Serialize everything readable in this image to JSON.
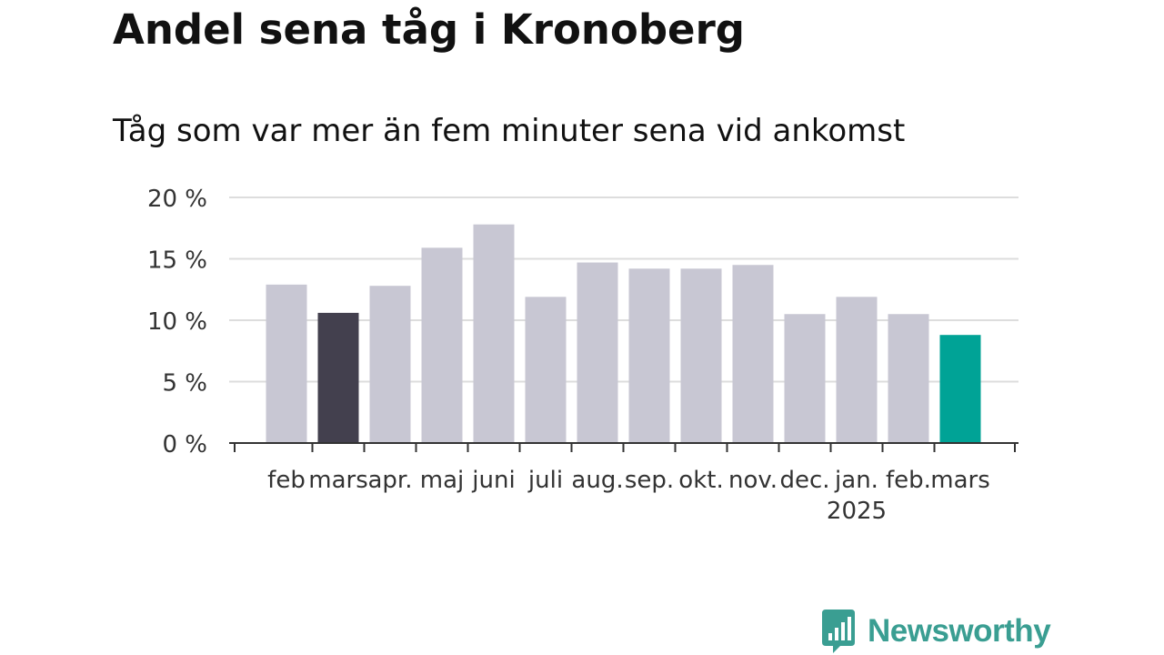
{
  "title": "Andel sena tåg i Kronoberg",
  "subtitle": "Tåg som var mer än fem minuter sena vid ankomst",
  "brand": {
    "name": "Newsworthy",
    "icon": "newsworthy-logo-icon",
    "color": "#3a9e92"
  },
  "colors": {
    "default_bar": "#c8c7d3",
    "highlight_previous_year": "#43404e",
    "highlight_current": "#00a396",
    "grid": "#dddddd",
    "axis": "#333333",
    "text": "#333333"
  },
  "chart_data": {
    "type": "bar",
    "categories": [
      "feb",
      "mars",
      "apr.",
      "maj",
      "juni",
      "juli",
      "aug.",
      "sep.",
      "okt.",
      "nov.",
      "dec.",
      "jan.",
      "feb.",
      "mars"
    ],
    "year_labels": {
      "11": "2025"
    },
    "values": [
      12.9,
      10.6,
      12.8,
      15.9,
      17.8,
      11.9,
      14.7,
      14.2,
      14.2,
      14.5,
      10.5,
      11.9,
      10.5,
      8.8
    ],
    "highlights": {
      "1": "highlight_previous_year",
      "13": "highlight_current"
    },
    "ylim": [
      0,
      20
    ],
    "yticks": [
      0,
      5,
      10,
      15,
      20
    ],
    "ytick_labels": [
      "0 %",
      "5 %",
      "10 %",
      "15 %",
      "20 %"
    ],
    "xlabel": "",
    "ylabel": "",
    "grid": true,
    "legend": "none"
  }
}
